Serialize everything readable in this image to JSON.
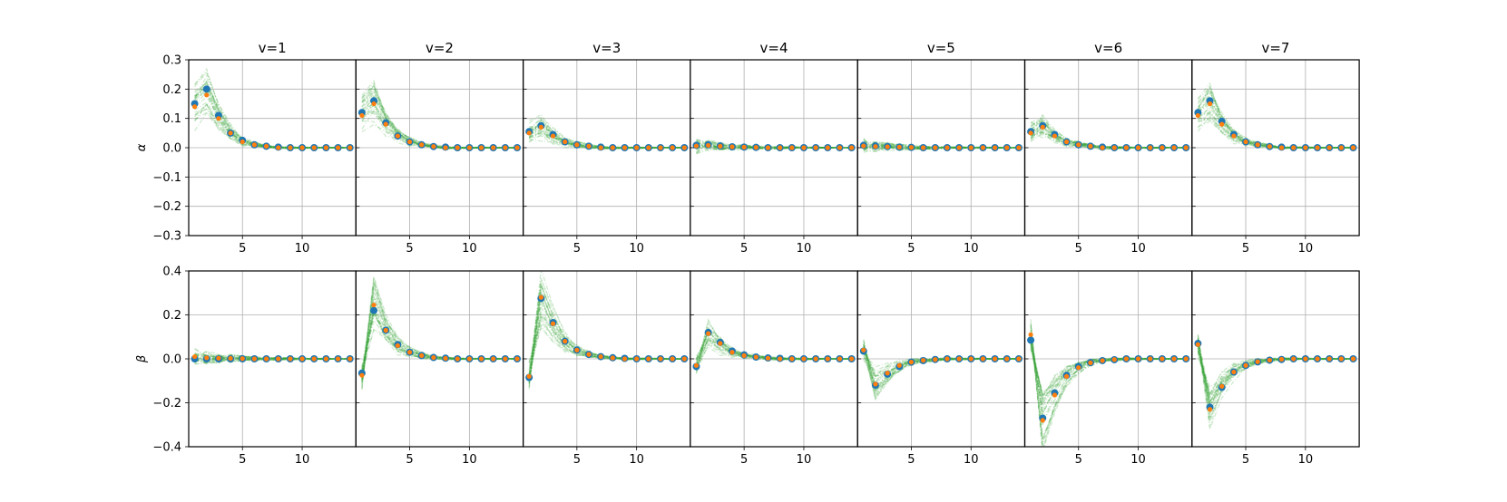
{
  "chart_data": {
    "type": "scatter",
    "panel_titles": [
      "v=1",
      "v=2",
      "v=3",
      "v=4",
      "v=5",
      "v=6",
      "v=7"
    ],
    "rows": [
      {
        "ylabel": "α",
        "ylim": [
          -0.3,
          0.3
        ],
        "yticks": [
          -0.3,
          -0.2,
          -0.1,
          0.0,
          0.1,
          0.2,
          0.3
        ],
        "ytick_labels": [
          "−0.3",
          "−0.2",
          "−0.1",
          "0.0",
          "0.1",
          "0.2",
          "0.3"
        ]
      },
      {
        "ylabel": "β",
        "ylim": [
          -0.4,
          0.4
        ],
        "yticks": [
          -0.4,
          -0.2,
          0.0,
          0.2,
          0.4
        ],
        "ytick_labels": [
          "−0.4",
          "−0.2",
          "0.0",
          "0.2",
          "0.4"
        ]
      }
    ],
    "xlim": [
      0.5,
      14.5
    ],
    "xticks": [
      5,
      10
    ],
    "xtick_labels": [
      "5",
      "10"
    ],
    "x": [
      1,
      2,
      3,
      4,
      5,
      6,
      7,
      8,
      9,
      10,
      11,
      12,
      13,
      14
    ],
    "grid": true,
    "series_colors": {
      "blue": "#1f77b4",
      "orange": "#ff7f0e",
      "green": "#2ca02c"
    },
    "panels": [
      {
        "row": 0,
        "col": 0,
        "blue": [
          0.15,
          0.2,
          0.11,
          0.05,
          0.025,
          0.01,
          0.005,
          0.002,
          0,
          0,
          0,
          0,
          0,
          0
        ],
        "orange": [
          0.14,
          0.18,
          0.1,
          0.05,
          0.02,
          0.01,
          0.005,
          0,
          0,
          0,
          0,
          0,
          0,
          0
        ]
      },
      {
        "row": 0,
        "col": 1,
        "blue": [
          0.12,
          0.16,
          0.085,
          0.04,
          0.02,
          0.01,
          0.004,
          0.002,
          0,
          0,
          0,
          0,
          0,
          0
        ],
        "orange": [
          0.11,
          0.15,
          0.08,
          0.04,
          0.02,
          0.01,
          0.004,
          0,
          0,
          0,
          0,
          0,
          0,
          0
        ]
      },
      {
        "row": 0,
        "col": 2,
        "blue": [
          0.055,
          0.075,
          0.045,
          0.02,
          0.01,
          0.005,
          0.002,
          0,
          0,
          0,
          0,
          0,
          0,
          0
        ],
        "orange": [
          0.05,
          0.07,
          0.04,
          0.02,
          0.01,
          0.005,
          0,
          0,
          0,
          0,
          0,
          0,
          0,
          0
        ]
      },
      {
        "row": 0,
        "col": 3,
        "blue": [
          0.008,
          0.01,
          0.006,
          0.003,
          0.002,
          0.001,
          0,
          0,
          0,
          0,
          0,
          0,
          0,
          0
        ],
        "orange": [
          0.006,
          0.008,
          0.005,
          0.003,
          0.002,
          0.001,
          0,
          0,
          0,
          0,
          0,
          0,
          0,
          0
        ]
      },
      {
        "row": 0,
        "col": 4,
        "blue": [
          0.008,
          0.006,
          0.004,
          0.002,
          0.001,
          0,
          0,
          0,
          0,
          0,
          0,
          0,
          0,
          0
        ],
        "orange": [
          0.006,
          0.004,
          0.003,
          0.002,
          0.001,
          0,
          0,
          0,
          0,
          0,
          0,
          0,
          0,
          0
        ]
      },
      {
        "row": 0,
        "col": 5,
        "blue": [
          0.055,
          0.075,
          0.045,
          0.02,
          0.01,
          0.005,
          0.002,
          0,
          0,
          0,
          0,
          0,
          0,
          0
        ],
        "orange": [
          0.05,
          0.07,
          0.04,
          0.02,
          0.01,
          0.005,
          0,
          0,
          0,
          0,
          0,
          0,
          0,
          0
        ]
      },
      {
        "row": 0,
        "col": 6,
        "blue": [
          0.12,
          0.16,
          0.09,
          0.045,
          0.02,
          0.01,
          0.004,
          0.002,
          0,
          0,
          0,
          0,
          0,
          0
        ],
        "orange": [
          0.11,
          0.15,
          0.08,
          0.04,
          0.02,
          0.01,
          0.004,
          0,
          0,
          0,
          0,
          0,
          0,
          0
        ]
      },
      {
        "row": 1,
        "col": 0,
        "blue": [
          0.0,
          0.0,
          0.0,
          0.0,
          0.0,
          0.0,
          0,
          0,
          0,
          0,
          0,
          0,
          0,
          0
        ],
        "orange": [
          0.01,
          0.005,
          0.003,
          0.002,
          0.001,
          0,
          0,
          0,
          0,
          0,
          0,
          0,
          0,
          0
        ]
      },
      {
        "row": 1,
        "col": 1,
        "blue": [
          -0.065,
          0.22,
          0.13,
          0.065,
          0.03,
          0.015,
          0.006,
          0.003,
          0,
          0,
          0,
          0,
          0,
          0
        ],
        "orange": [
          -0.075,
          0.245,
          0.13,
          0.06,
          0.03,
          0.015,
          0.006,
          0.002,
          0,
          0,
          0,
          0,
          0,
          0
        ]
      },
      {
        "row": 1,
        "col": 2,
        "blue": [
          -0.085,
          0.275,
          0.165,
          0.08,
          0.04,
          0.02,
          0.01,
          0.005,
          0.002,
          0,
          0,
          0,
          0,
          0
        ],
        "orange": [
          -0.08,
          0.28,
          0.16,
          0.08,
          0.04,
          0.02,
          0.01,
          0.004,
          0,
          0,
          0,
          0,
          0,
          0
        ]
      },
      {
        "row": 1,
        "col": 3,
        "blue": [
          -0.035,
          0.12,
          0.075,
          0.035,
          0.018,
          0.008,
          0.004,
          0.002,
          0,
          0,
          0,
          0,
          0,
          0
        ],
        "orange": [
          -0.03,
          0.115,
          0.07,
          0.03,
          0.015,
          0.008,
          0.003,
          0,
          0,
          0,
          0,
          0,
          0,
          0
        ]
      },
      {
        "row": 1,
        "col": 4,
        "blue": [
          0.035,
          -0.12,
          -0.07,
          -0.035,
          -0.015,
          -0.008,
          -0.003,
          0,
          0,
          0,
          0,
          0,
          0,
          0
        ],
        "orange": [
          0.04,
          -0.115,
          -0.065,
          -0.03,
          -0.015,
          -0.007,
          -0.003,
          0,
          0,
          0,
          0,
          0,
          0,
          0
        ]
      },
      {
        "row": 1,
        "col": 5,
        "blue": [
          0.085,
          -0.27,
          -0.155,
          -0.075,
          -0.035,
          -0.017,
          -0.008,
          -0.004,
          0,
          0,
          0,
          0,
          0,
          0
        ],
        "orange": [
          0.11,
          -0.28,
          -0.165,
          -0.08,
          -0.04,
          -0.018,
          -0.008,
          -0.003,
          0,
          0,
          0,
          0,
          0,
          0
        ]
      },
      {
        "row": 1,
        "col": 6,
        "blue": [
          0.07,
          -0.22,
          -0.13,
          -0.06,
          -0.03,
          -0.014,
          -0.006,
          -0.003,
          0,
          0,
          0,
          0,
          0,
          0
        ],
        "orange": [
          0.065,
          -0.23,
          -0.125,
          -0.06,
          -0.03,
          -0.013,
          -0.006,
          -0.002,
          0,
          0,
          0,
          0,
          0,
          0
        ]
      }
    ]
  }
}
